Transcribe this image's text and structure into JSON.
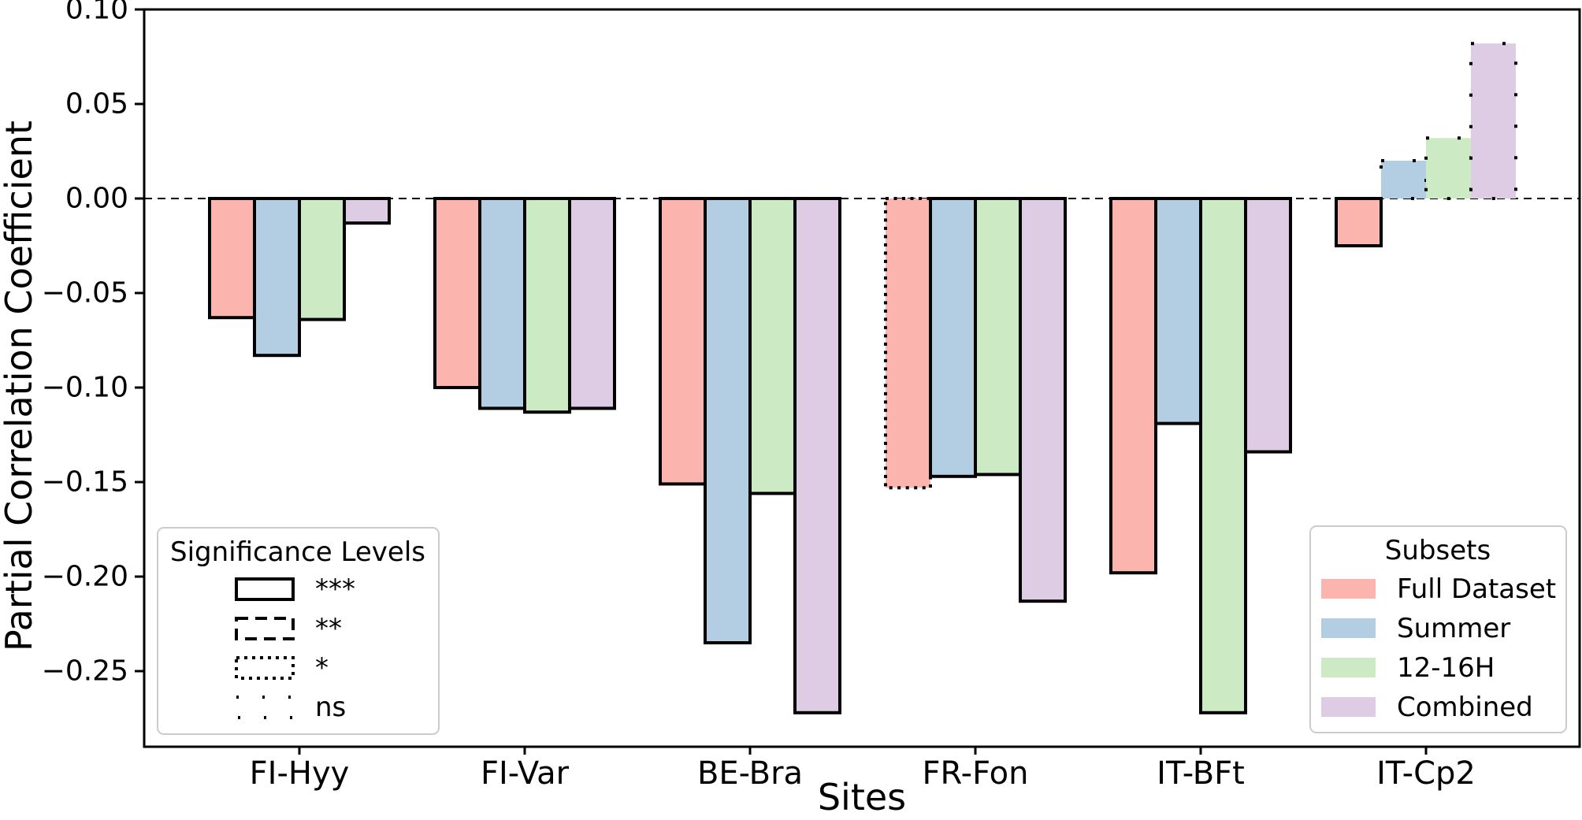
{
  "chart_data": {
    "type": "bar",
    "title": "",
    "xlabel": "Sites",
    "ylabel": "Partial Correlation Coefficient",
    "categories": [
      "FI-Hyy",
      "FI-Var",
      "BE-Bra",
      "FR-Fon",
      "IT-BFt",
      "IT-Cp2"
    ],
    "series": [
      {
        "name": "Full Dataset",
        "color": "#fbb4ae",
        "values": [
          -0.063,
          -0.1,
          -0.151,
          -0.153,
          -0.198,
          -0.025
        ],
        "significance": [
          "***",
          "***",
          "***",
          "*",
          "***",
          "***"
        ]
      },
      {
        "name": "Summer",
        "color": "#b3cde3",
        "values": [
          -0.083,
          -0.111,
          -0.235,
          -0.147,
          -0.119,
          0.02
        ],
        "significance": [
          "***",
          "***",
          "***",
          "***",
          "***",
          "ns"
        ]
      },
      {
        "name": "12-16H",
        "color": "#ccebc5",
        "values": [
          -0.064,
          -0.113,
          -0.156,
          -0.146,
          -0.272,
          0.032
        ],
        "significance": [
          "***",
          "***",
          "***",
          "***",
          "***",
          "ns"
        ]
      },
      {
        "name": "Combined",
        "color": "#decbe4",
        "values": [
          -0.013,
          -0.111,
          -0.272,
          -0.213,
          -0.134,
          0.082
        ],
        "significance": [
          "***",
          "***",
          "***",
          "***",
          "***",
          "ns"
        ]
      }
    ],
    "ylim": [
      -0.29,
      0.1
    ],
    "yticks": [
      0.1,
      0.05,
      0.0,
      -0.05,
      -0.1,
      -0.15,
      -0.2,
      -0.25
    ],
    "zero_line": true,
    "grid": false,
    "legends": {
      "significance": {
        "title": "Significance Levels",
        "entries": [
          {
            "style": "solid",
            "label": "***"
          },
          {
            "style": "dashed",
            "label": "**"
          },
          {
            "style": "dotted",
            "label": "*"
          },
          {
            "style": "sparse-dotted",
            "label": "ns"
          }
        ]
      },
      "subsets": {
        "title": "Subsets",
        "entries": [
          {
            "label": "Full Dataset"
          },
          {
            "label": "Summer"
          },
          {
            "label": "12-16H"
          },
          {
            "label": "Combined"
          }
        ]
      }
    },
    "style": {
      "bar_edge_color": "#000000",
      "background": "#ffffff",
      "zero_line_color": "#000000"
    }
  }
}
